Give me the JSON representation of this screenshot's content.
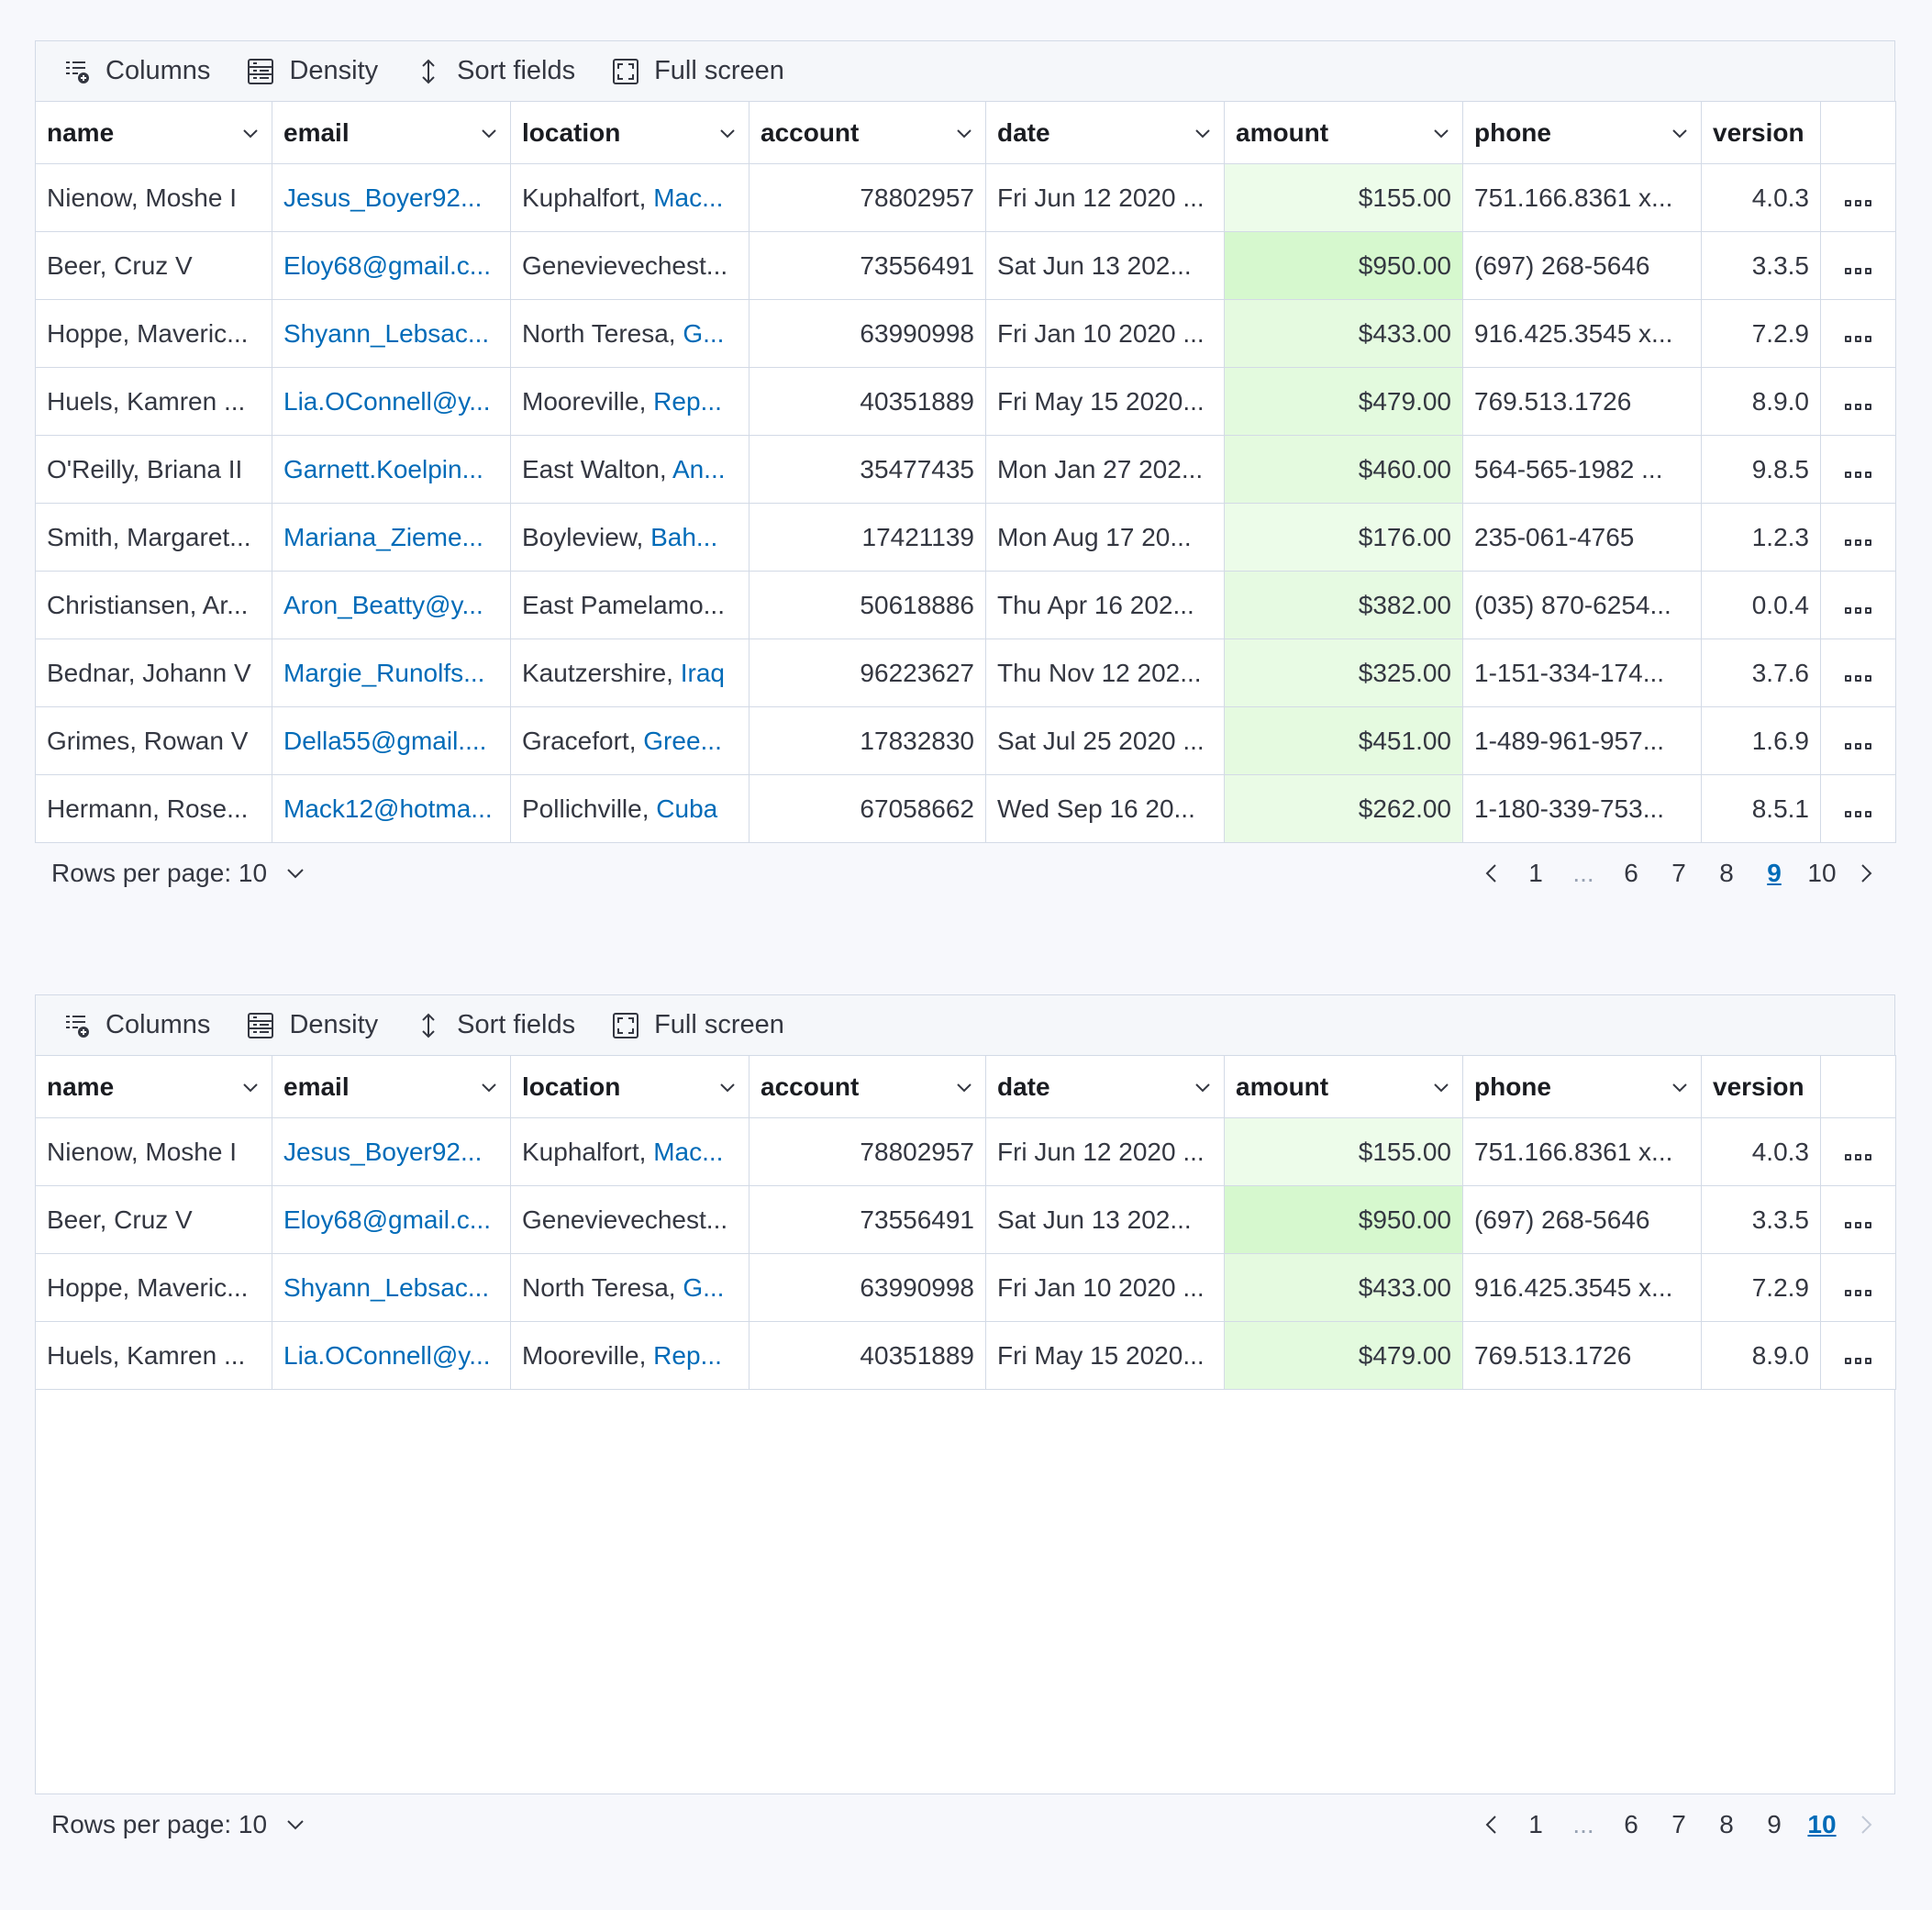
{
  "toolbar": {
    "columns": "Columns",
    "density": "Density",
    "sort_fields": "Sort fields",
    "full_screen": "Full screen"
  },
  "columns": [
    "name",
    "email",
    "location",
    "account",
    "date",
    "amount",
    "phone",
    "version"
  ],
  "rows": [
    {
      "name": "Nienow, Moshe I",
      "email": "Jesus_Boyer92...",
      "city": "Kuphalfort,",
      "country": "Mac...",
      "account": "78802957",
      "date": "Fri Jun 12 2020 ...",
      "amount": "$155.00",
      "amount_level": 0.16,
      "phone": "751.166.8361 x...",
      "version": "4.0.3"
    },
    {
      "name": "Beer, Cruz V",
      "email": "Eloy68@gmail.c...",
      "city": "Genevievechest...",
      "country": "",
      "account": "73556491",
      "date": "Sat Jun 13 202...",
      "amount": "$950.00",
      "amount_level": 1.0,
      "phone": "(697) 268-5646",
      "version": "3.3.5"
    },
    {
      "name": "Hoppe, Maveric...",
      "email": "Shyann_Lebsac...",
      "city": "North Teresa,",
      "country": "G...",
      "account": "63990998",
      "date": "Fri Jan 10 2020 ...",
      "amount": "$433.00",
      "amount_level": 0.46,
      "phone": "916.425.3545 x...",
      "version": "7.2.9"
    },
    {
      "name": "Huels, Kamren ...",
      "email": "Lia.OConnell@y...",
      "city": "Mooreville,",
      "country": "Rep...",
      "account": "40351889",
      "date": "Fri May 15 2020...",
      "amount": "$479.00",
      "amount_level": 0.5,
      "phone": "769.513.1726",
      "version": "8.9.0"
    },
    {
      "name": "O'Reilly, Briana II",
      "email": "Garnett.Koelpin...",
      "city": "East Walton,",
      "country": "An...",
      "account": "35477435",
      "date": "Mon Jan 27 202...",
      "amount": "$460.00",
      "amount_level": 0.48,
      "phone": "564-565-1982 ...",
      "version": "9.8.5"
    },
    {
      "name": "Smith, Margaret...",
      "email": "Mariana_Zieme...",
      "city": "Boyleview,",
      "country": "Bah...",
      "account": "17421139",
      "date": "Mon Aug 17 20...",
      "amount": "$176.00",
      "amount_level": 0.19,
      "phone": "235-061-4765",
      "version": "1.2.3"
    },
    {
      "name": "Christiansen, Ar...",
      "email": "Aron_Beatty@y...",
      "city": "East Pamelamo...",
      "country": "",
      "account": "50618886",
      "date": "Thu Apr 16 202...",
      "amount": "$382.00",
      "amount_level": 0.4,
      "phone": "(035) 870-6254...",
      "version": "0.0.4"
    },
    {
      "name": "Bednar, Johann V",
      "email": "Margie_Runolfs...",
      "city": "Kautzershire,",
      "country": "Iraq",
      "account": "96223627",
      "date": "Thu Nov 12 202...",
      "amount": "$325.00",
      "amount_level": 0.34,
      "phone": "1-151-334-174...",
      "version": "3.7.6"
    },
    {
      "name": "Grimes, Rowan V",
      "email": "Della55@gmail....",
      "city": "Gracefort,",
      "country": "Gree...",
      "account": "17832830",
      "date": "Sat Jul 25 2020 ...",
      "amount": "$451.00",
      "amount_level": 0.47,
      "phone": "1-489-961-957...",
      "version": "1.6.9"
    },
    {
      "name": "Hermann, Rose...",
      "email": "Mack12@hotma...",
      "city": "Pollichville,",
      "country": "Cuba",
      "account": "67058662",
      "date": "Wed Sep 16 20...",
      "amount": "$262.00",
      "amount_level": 0.28,
      "phone": "1-180-339-753...",
      "version": "8.5.1"
    }
  ],
  "pager1": {
    "rows_per_page": "Rows per page: 10",
    "pages": [
      "1",
      "...",
      "6",
      "7",
      "8",
      "9",
      "10"
    ],
    "active": "9"
  },
  "pager2": {
    "rows_per_page": "Rows per page: 10",
    "pages": [
      "1",
      "...",
      "6",
      "7",
      "8",
      "9",
      "10"
    ],
    "active": "10"
  },
  "grid2_row_count": 4,
  "colors": {
    "link": "#006bb8",
    "border": "#d3dae6",
    "amount_highlight": "#e2f9dc"
  }
}
